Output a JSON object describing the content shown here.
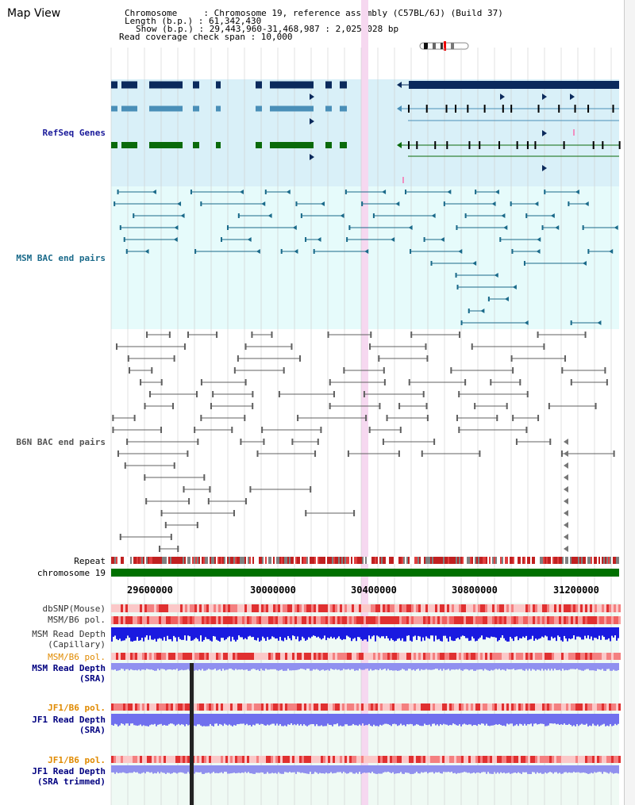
{
  "title": "Map View",
  "header": {
    "chromosome": "Chromosome     : Chromosome 19, reference assembly (C57BL/6J) (Build 37)",
    "length": "Length (b.p.) : 61,342,430",
    "show": "Show (b.p.) : 29,443,960-31,468,987 : 2,025,028 bp",
    "coverage": "Read coverage check span : 10,000"
  },
  "tracks": {
    "refseq": "RefSeq Genes",
    "msm_bac": "MSM BAC end pairs",
    "b6n_bac": "B6N BAC end pairs",
    "repeat": "Repeat",
    "chromosome": "chromosome 19"
  },
  "ruler": {
    "ticks": [
      "29600000",
      "30000000",
      "30400000",
      "30800000",
      "31200000"
    ]
  },
  "graph_tracks": [
    {
      "line1": "dbSNP(Mouse)",
      "line2": "",
      "color": "#333333"
    },
    {
      "line1": "MSM/B6 pol.",
      "line2": "",
      "color": "#333333"
    },
    {
      "line1": "MSM Read Depth",
      "line2": "(Capillary)",
      "color": "#333333"
    },
    {
      "line1": "MSM/B6 pol.",
      "line2": "",
      "color": "#e08a00"
    },
    {
      "line1": "MSM Read Depth",
      "line2": "(SRA)",
      "color": "#000080"
    },
    {
      "line1": "JF1/B6 pol.",
      "line2": "",
      "color": "#e08a00"
    },
    {
      "line1": "JF1 Read Depth",
      "line2": "(SRA)",
      "color": "#000080"
    },
    {
      "line1": "JF1/B6 pol.",
      "line2": "",
      "color": "#e08a00"
    },
    {
      "line1": "JF1 Read Depth",
      "line2": "(SRA trimmed)",
      "color": "#000080"
    }
  ],
  "colors": {
    "refseq_bg": "#d9f0f8",
    "msm_bg": "#e6fbfb",
    "highlight": "#f6d8f0",
    "gene_dark": "#0b2a5c",
    "gene_mid": "#4a8fb8",
    "gene_green": "#0a6a0a",
    "msm_line": "#1a6a8a",
    "b6n_line": "#606060",
    "chrom": "#007000",
    "depth": "#2222dd",
    "depth_light": "#8888ee"
  }
}
